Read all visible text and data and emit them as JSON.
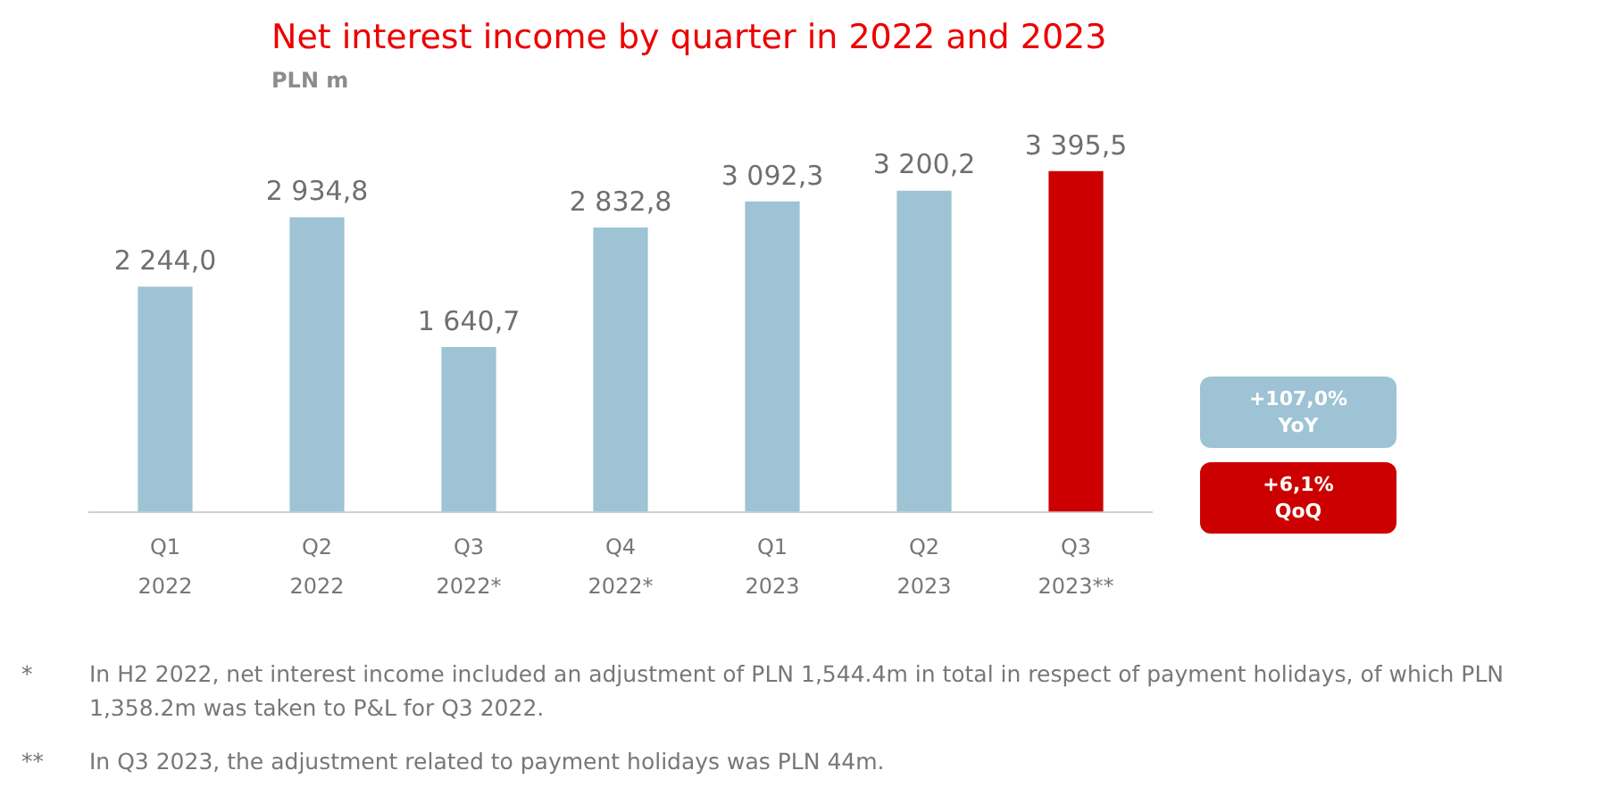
{
  "chart_data": {
    "type": "bar",
    "title": "Net interest income by quarter in 2022 and 2023",
    "subtitle": "PLN m",
    "categories": [
      "Q1\n2022",
      "Q2\n2022",
      "Q3\n2022*",
      "Q4\n2022*",
      "Q1\n2023",
      "Q2\n2023",
      "Q3\n2023**"
    ],
    "values": [
      2244.0,
      2934.8,
      1640.7,
      2832.8,
      3092.3,
      3200.2,
      3395.5
    ],
    "value_labels": [
      "2 244,0",
      "2 934,8",
      "1 640,7",
      "2 832,8",
      "3 092,3",
      "3 200,2",
      "3 395,5"
    ],
    "colors": [
      "#9dc3d4",
      "#9dc3d4",
      "#9dc3d4",
      "#9dc3d4",
      "#9dc3d4",
      "#9dc3d4",
      "#cc0000"
    ],
    "annotations": [
      "+107,0%\nYoY",
      "+6,1%\nQoQ",
      "* In H2 2022, net interest income included an adjustment of PLN 1,544.4m in total in respect of payment holidays, of which PLN 1,358.2m was taken to P&L for Q3 2022.",
      "** In Q3 2023, the adjustment related to payment holidays was PLN 44m."
    ],
    "grid": false,
    "legend": false
  }
}
